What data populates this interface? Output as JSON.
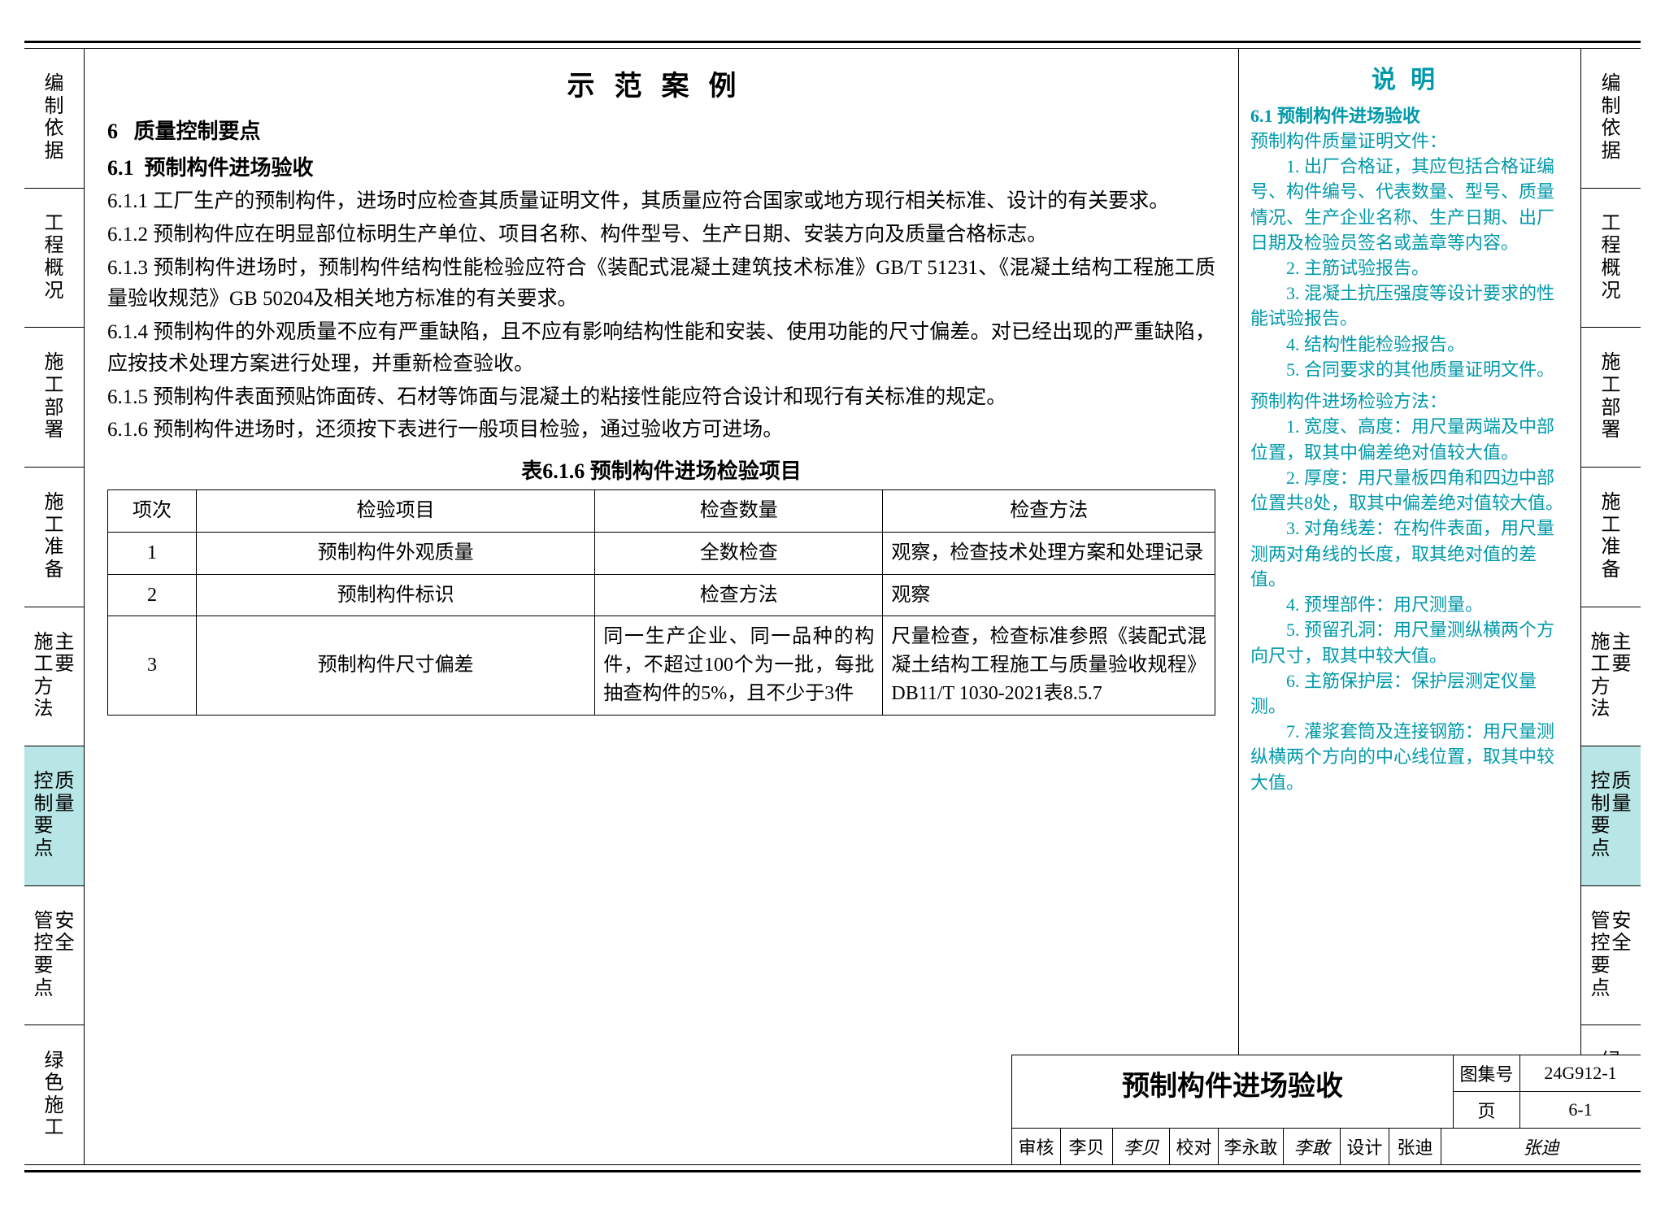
{
  "colors": {
    "text": "#000000",
    "teal": "#0099aa",
    "active_tab_bg": "#b8e6e6",
    "border": "#000000",
    "background": "#ffffff"
  },
  "sidetabs": [
    {
      "col1": "编制依据",
      "col2": "",
      "active": false
    },
    {
      "col1": "工程概况",
      "col2": "",
      "active": false
    },
    {
      "col1": "施工部署",
      "col2": "",
      "active": false
    },
    {
      "col1": "施工准备",
      "col2": "",
      "active": false
    },
    {
      "col1": "施工方法",
      "col2": "主要",
      "active": false
    },
    {
      "col1": "控制要点",
      "col2": "质量",
      "active": true
    },
    {
      "col1": "管控要点",
      "col2": "安全",
      "active": false
    },
    {
      "col1": "绿色施工",
      "col2": "",
      "active": false
    }
  ],
  "main": {
    "title": "示范案例",
    "section_no": "6",
    "section_title": "质量控制要点",
    "subsection_no": "6.1",
    "subsection_title": "预制构件进场验收",
    "paras": [
      "6.1.1 工厂生产的预制构件，进场时应检查其质量证明文件，其质量应符合国家或地方现行相关标准、设计的有关要求。",
      "6.1.2 预制构件应在明显部位标明生产单位、项目名称、构件型号、生产日期、安装方向及质量合格标志。",
      "6.1.3 预制构件进场时，预制构件结构性能检验应符合《装配式混凝土建筑技术标准》GB/T 51231、《混凝土结构工程施工质量验收规范》GB 50204及相关地方标准的有关要求。",
      "6.1.4 预制构件的外观质量不应有严重缺陷，且不应有影响结构性能和安装、使用功能的尺寸偏差。对已经出现的严重缺陷，应按技术处理方案进行处理，并重新检查验收。",
      "6.1.5 预制构件表面预贴饰面砖、石材等饰面与混凝土的粘接性能应符合设计和现行有关标准的规定。",
      "6.1.6 预制构件进场时，还须按下表进行一般项目检验，通过验收方可进场。"
    ],
    "table_title": "表6.1.6 预制构件进场检验项目",
    "table": {
      "col_widths_pct": [
        8,
        36,
        26,
        30
      ],
      "headers": [
        "项次",
        "检验项目",
        "检查数量",
        "检查方法"
      ],
      "rows": [
        {
          "n": "1",
          "item": "预制构件外观质量",
          "qty": "全数检查",
          "method": "观察，检查技术处理方案和处理记录"
        },
        {
          "n": "2",
          "item": "预制构件标识",
          "qty": "检查方法",
          "method": "观察"
        },
        {
          "n": "3",
          "item": "预制构件尺寸偏差",
          "qty": "同一生产企业、同一品种的构件，不超过100个为一批，每批抽查构件的5%，且不少于3件",
          "method": "尺量检查，检查标准参照《装配式混凝土结构工程施工与质量验收规程》DB11/T 1030-2021表8.5.7"
        }
      ]
    }
  },
  "notes": {
    "title": "说明",
    "section_head": "6.1 预制构件进场验收",
    "group1_head": "预制构件质量证明文件：",
    "group1_items": [
      "1. 出厂合格证，其应包括合格证编号、构件编号、代表数量、型号、质量情况、生产企业名称、生产日期、出厂日期及检验员签名或盖章等内容。",
      "2. 主筋试验报告。",
      "3. 混凝土抗压强度等设计要求的性能试验报告。",
      "4. 结构性能检验报告。",
      "5. 合同要求的其他质量证明文件。"
    ],
    "group2_head": "预制构件进场检验方法：",
    "group2_items": [
      "1. 宽度、高度：用尺量两端及中部位置，取其中偏差绝对值较大值。",
      "2. 厚度：用尺量板四角和四边中部位置共8处，取其中偏差绝对值较大值。",
      "3. 对角线差：在构件表面，用尺量测两对角线的长度，取其绝对值的差值。",
      "4. 预埋部件：用尺测量。",
      "5. 预留孔洞：用尺量测纵横两个方向尺寸，取其中较大值。",
      "6. 主筋保护层：保护层测定仪量测。",
      "7. 灌浆套筒及连接钢筋：用尺量测纵横两个方向的中心线位置，取其中较大值。"
    ]
  },
  "titleblock": {
    "title": "预制构件进场验收",
    "set_label": "图集号",
    "set_no": "24G912-1",
    "page_label": "页",
    "page_no": "6-1",
    "review_label": "审核",
    "review_name": "李贝",
    "review_sig": "李贝",
    "check_label": "校对",
    "check_name": "李永敢",
    "check_sig": "李敢",
    "design_label": "设计",
    "design_name": "张迪",
    "design_sig": "张迪"
  }
}
